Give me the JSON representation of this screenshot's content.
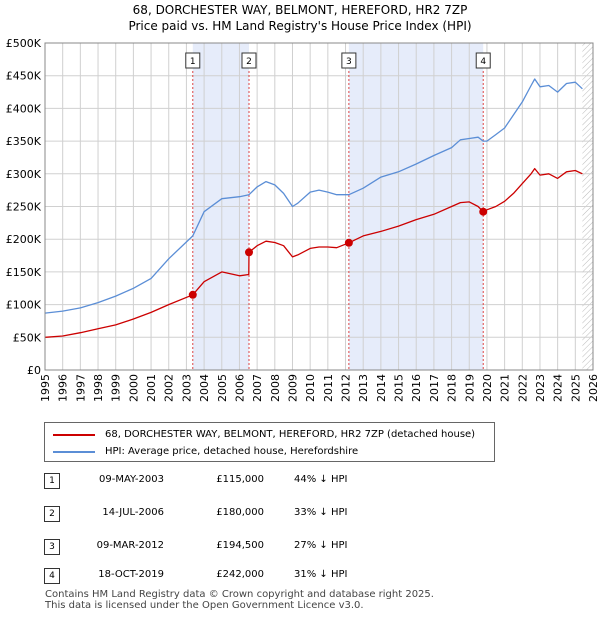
{
  "title": {
    "line1": "68, DORCHESTER WAY, BELMONT, HEREFORD, HR2 7ZP",
    "line2": "Price paid vs. HM Land Registry's House Price Index (HPI)"
  },
  "colors": {
    "property": "#cc0000",
    "hpi": "#5b8ed6",
    "shade": "#e6ecfa",
    "marker_line": "#dd4444",
    "grid": "#d0d0d0"
  },
  "chart_data": {
    "type": "line",
    "title": "Price paid vs. HM Land Registry's House Price Index (HPI)",
    "xlim": [
      1995,
      2026
    ],
    "ylim": [
      0,
      500000
    ],
    "y_ticks": [
      0,
      50000,
      100000,
      150000,
      200000,
      250000,
      300000,
      350000,
      400000,
      450000,
      500000
    ],
    "y_tick_labels": [
      "£0",
      "£50K",
      "£100K",
      "£150K",
      "£200K",
      "£250K",
      "£300K",
      "£350K",
      "£400K",
      "£450K",
      "£500K"
    ],
    "x_ticks": [
      1995,
      1996,
      1997,
      1998,
      1999,
      2000,
      2001,
      2002,
      2003,
      2004,
      2005,
      2006,
      2007,
      2008,
      2009,
      2010,
      2011,
      2012,
      2013,
      2014,
      2015,
      2016,
      2017,
      2018,
      2019,
      2020,
      2021,
      2022,
      2023,
      2024,
      2025,
      2026
    ],
    "x_tick_labels": [
      "1995",
      "1996",
      "1997",
      "1998",
      "1999",
      "2000",
      "2001",
      "2002",
      "2003",
      "2004",
      "2005",
      "2006",
      "2007",
      "2008",
      "2009",
      "2010",
      "2011",
      "2012",
      "2013",
      "2014",
      "2015",
      "2016",
      "2017",
      "2018",
      "2019",
      "2020",
      "2021",
      "2022",
      "2023",
      "2024",
      "2025",
      "2026"
    ],
    "shaded_ranges": [
      [
        2003.36,
        2006.54
      ],
      [
        2012.19,
        2019.79
      ]
    ],
    "data_end": 2025.4,
    "series": [
      {
        "name": "68, DORCHESTER WAY, BELMONT, HEREFORD, HR2 7ZP (detached house)",
        "x": [
          1995.0,
          1996.0,
          1997.0,
          1998.0,
          1999.0,
          2000.0,
          2001.0,
          2002.0,
          2003.36,
          2004.0,
          2005.0,
          2006.0,
          2006.53,
          2006.54,
          2007.0,
          2007.5,
          2008.0,
          2008.5,
          2009.0,
          2009.3,
          2010.0,
          2010.5,
          2011.0,
          2011.5,
          2012.19,
          2013.0,
          2014.0,
          2015.0,
          2016.0,
          2017.0,
          2018.0,
          2018.5,
          2019.0,
          2019.5,
          2019.79,
          2020.0,
          2020.5,
          2021.0,
          2021.5,
          2022.0,
          2022.5,
          2022.7,
          2023.0,
          2023.5,
          2024.0,
          2024.5,
          2025.0,
          2025.4
        ],
        "values": [
          50000,
          52000,
          57000,
          63000,
          69000,
          78000,
          88000,
          100000,
          115000,
          135000,
          150000,
          144000,
          146000,
          180000,
          190000,
          197000,
          195000,
          190000,
          173000,
          176000,
          186000,
          188000,
          188000,
          187000,
          194500,
          205000,
          212000,
          220000,
          230000,
          238000,
          250000,
          256000,
          257000,
          250000,
          242000,
          245000,
          250000,
          258000,
          270000,
          285000,
          300000,
          308000,
          298000,
          300000,
          293000,
          303000,
          305000,
          300000
        ]
      },
      {
        "name": "HPI: Average price, detached house, Herefordshire",
        "x": [
          1995.0,
          1996.0,
          1997.0,
          1998.0,
          1999.0,
          2000.0,
          2001.0,
          2002.0,
          2003.36,
          2004.0,
          2005.0,
          2006.0,
          2006.54,
          2007.0,
          2007.5,
          2008.0,
          2008.5,
          2009.0,
          2009.3,
          2010.0,
          2010.5,
          2011.0,
          2011.5,
          2012.19,
          2013.0,
          2014.0,
          2015.0,
          2016.0,
          2017.0,
          2018.0,
          2018.5,
          2019.0,
          2019.5,
          2019.79,
          2020.0,
          2020.5,
          2021.0,
          2021.5,
          2022.0,
          2022.5,
          2022.7,
          2023.0,
          2023.5,
          2024.0,
          2024.5,
          2025.0,
          2025.4
        ],
        "values": [
          87000,
          90000,
          95000,
          103000,
          113000,
          125000,
          140000,
          170000,
          205000,
          242000,
          262000,
          265000,
          268000,
          280000,
          288000,
          283000,
          270000,
          250000,
          255000,
          272000,
          275000,
          272000,
          268000,
          268000,
          278000,
          295000,
          303000,
          315000,
          328000,
          340000,
          352000,
          354000,
          356000,
          350000,
          350000,
          360000,
          370000,
          390000,
          410000,
          435000,
          445000,
          433000,
          435000,
          425000,
          438000,
          440000,
          430000
        ]
      }
    ],
    "markers": [
      {
        "label": "1",
        "x": 2003.36,
        "y": 115000
      },
      {
        "label": "2",
        "x": 2006.54,
        "y": 180000
      },
      {
        "label": "3",
        "x": 2012.19,
        "y": 194500
      },
      {
        "label": "4",
        "x": 2019.79,
        "y": 242000
      }
    ]
  },
  "legend": {
    "property": "68, DORCHESTER WAY, BELMONT, HEREFORD, HR2 7ZP (detached house)",
    "hpi": "HPI: Average price, detached house, Herefordshire"
  },
  "sales": [
    {
      "num": "1",
      "date": "09-MAY-2003",
      "price": "£115,000",
      "hpi": "44% ↓ HPI"
    },
    {
      "num": "2",
      "date": "14-JUL-2006",
      "price": "£180,000",
      "hpi": "33% ↓ HPI"
    },
    {
      "num": "3",
      "date": "09-MAR-2012",
      "price": "£194,500",
      "hpi": "27% ↓ HPI"
    },
    {
      "num": "4",
      "date": "18-OCT-2019",
      "price": "£242,000",
      "hpi": "31% ↓ HPI"
    }
  ],
  "footer": {
    "line1": "Contains HM Land Registry data © Crown copyright and database right 2025.",
    "line2": "This data is licensed under the Open Government Licence v3.0."
  }
}
